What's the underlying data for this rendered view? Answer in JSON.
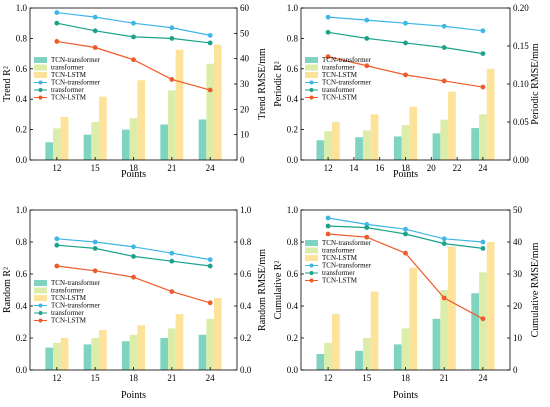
{
  "colors": {
    "bar_tcn_transformer": "#7fd3c1",
    "bar_transformer": "#dcedaa",
    "bar_tcn_lstm": "#fde29a",
    "line_tcn_transformer": "#3eb6e6",
    "line_transformer": "#1aa38a",
    "line_tcn_lstm": "#ef5b28"
  },
  "chart_data": [
    {
      "type": "bar",
      "panel": "Trend",
      "ylabel": "Trend R²",
      "y2label": "Trend RMSE/mm",
      "xlabel": "Points",
      "ylim": [
        0,
        1.0
      ],
      "y2lim": [
        0,
        60
      ],
      "yticks": [
        "0.0",
        "0.2",
        "0.4",
        "0.6",
        "0.8",
        "1.0"
      ],
      "y2ticks": [
        "0",
        "10",
        "20",
        "30",
        "40",
        "50",
        "60"
      ],
      "categories": [
        "12",
        "15",
        "18",
        "21",
        "24"
      ],
      "bar_series": [
        {
          "name": "TCN-transformer",
          "values": [
            7,
            10,
            12,
            14,
            16
          ]
        },
        {
          "name": "transformer",
          "values": [
            12.5,
            15,
            16.5,
            27.5,
            38
          ]
        },
        {
          "name": "TCN-LSTM",
          "values": [
            17,
            25,
            31.5,
            43.5,
            45.5
          ]
        }
      ],
      "line_series": [
        {
          "name": "TCN-transformer",
          "values": [
            0.97,
            0.94,
            0.9,
            0.87,
            0.82
          ]
        },
        {
          "name": "transformer",
          "values": [
            0.9,
            0.85,
            0.81,
            0.8,
            0.77
          ]
        },
        {
          "name": "TCN-LSTM",
          "values": [
            0.78,
            0.74,
            0.66,
            0.53,
            0.46
          ]
        }
      ]
    },
    {
      "type": "bar",
      "panel": "Periodic",
      "ylabel": "Periodic R²",
      "y2label": "Periodic RMSE/mm",
      "xlabel": "Points",
      "ylim": [
        0,
        1.0
      ],
      "y2lim": [
        0,
        0.2
      ],
      "yticks": [
        "0.0",
        "0.2",
        "0.4",
        "0.6",
        "0.8",
        "1.0"
      ],
      "y2ticks": [
        "0.00",
        "0.05",
        "0.10",
        "0.15",
        "0.20"
      ],
      "xticks": [
        "12",
        "14",
        "16",
        "18",
        "20",
        "22",
        "24"
      ],
      "categories": [
        "12",
        "15",
        "18",
        "21",
        "24"
      ],
      "bar_series": [
        {
          "name": "TCN-transformer",
          "values": [
            0.026,
            0.03,
            0.031,
            0.035,
            0.042
          ]
        },
        {
          "name": "transformer",
          "values": [
            0.038,
            0.039,
            0.046,
            0.053,
            0.06
          ]
        },
        {
          "name": "TCN-LSTM",
          "values": [
            0.05,
            0.06,
            0.07,
            0.09,
            0.12
          ]
        }
      ],
      "line_series": [
        {
          "name": "TCN-transformer",
          "values": [
            0.94,
            0.92,
            0.9,
            0.88,
            0.85
          ]
        },
        {
          "name": "transformer",
          "values": [
            0.84,
            0.8,
            0.77,
            0.74,
            0.7
          ]
        },
        {
          "name": "TCN-LSTM",
          "values": [
            0.68,
            0.62,
            0.56,
            0.52,
            0.48
          ]
        }
      ]
    },
    {
      "type": "bar",
      "panel": "Random",
      "ylabel": "Random R²",
      "y2label": "Random RMSE/mm",
      "xlabel": "Points",
      "ylim": [
        0,
        1.0
      ],
      "y2lim": [
        0,
        1.0
      ],
      "yticks": [
        "0.0",
        "0.2",
        "0.4",
        "0.6",
        "0.8",
        "1.0"
      ],
      "y2ticks": [
        "0.0",
        "0.2",
        "0.4",
        "0.6",
        "0.8",
        "1.0"
      ],
      "categories": [
        "12",
        "15",
        "18",
        "21",
        "24"
      ],
      "bar_series": [
        {
          "name": "TCN-transformer",
          "values": [
            0.14,
            0.16,
            0.18,
            0.2,
            0.22
          ]
        },
        {
          "name": "transformer",
          "values": [
            0.17,
            0.2,
            0.22,
            0.26,
            0.32
          ]
        },
        {
          "name": "TCN-LSTM",
          "values": [
            0.2,
            0.25,
            0.28,
            0.35,
            0.45
          ]
        }
      ],
      "line_series": [
        {
          "name": "TCN-transformer",
          "values": [
            0.82,
            0.8,
            0.77,
            0.73,
            0.69
          ]
        },
        {
          "name": "transformer",
          "values": [
            0.78,
            0.76,
            0.71,
            0.68,
            0.65
          ]
        },
        {
          "name": "TCN-LSTM",
          "values": [
            0.65,
            0.62,
            0.58,
            0.49,
            0.42
          ]
        }
      ]
    },
    {
      "type": "bar",
      "panel": "Cumulative",
      "ylabel": "Cumulative R²",
      "y2label": "Cumulative RMSE/mm",
      "xlabel": "Points",
      "ylim": [
        0,
        1.0
      ],
      "y2lim": [
        0,
        50
      ],
      "yticks": [
        "0.0",
        "0.2",
        "0.4",
        "0.6",
        "0.8",
        "1.0"
      ],
      "y2ticks": [
        "0",
        "10",
        "20",
        "30",
        "40",
        "50"
      ],
      "categories": [
        "12",
        "15",
        "18",
        "21",
        "24"
      ],
      "bar_series": [
        {
          "name": "TCN-transformer",
          "values": [
            5,
            6,
            8,
            16,
            24
          ]
        },
        {
          "name": "transformer",
          "values": [
            8.5,
            10,
            13,
            25,
            30.5
          ]
        },
        {
          "name": "TCN-LSTM",
          "values": [
            17.5,
            24.5,
            32,
            38.5,
            40
          ]
        }
      ],
      "line_series": [
        {
          "name": "TCN-transformer",
          "values": [
            0.95,
            0.91,
            0.88,
            0.82,
            0.8
          ]
        },
        {
          "name": "transformer",
          "values": [
            0.9,
            0.89,
            0.85,
            0.79,
            0.76
          ]
        },
        {
          "name": "TCN-LSTM",
          "values": [
            0.85,
            0.83,
            0.73,
            0.45,
            0.32
          ]
        }
      ]
    }
  ]
}
